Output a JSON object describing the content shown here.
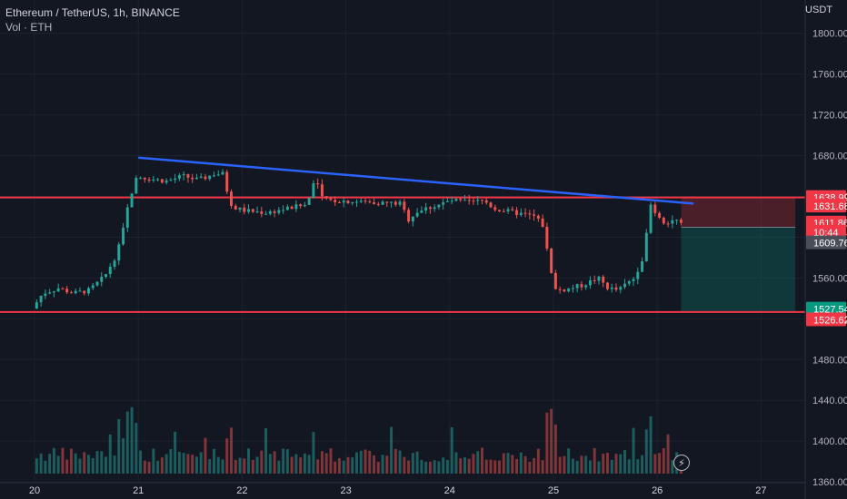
{
  "header": {
    "symbol": "Ethereum / TetherUS, 1h, BINANCE",
    "volume_label": "Vol · ETH"
  },
  "price_scale": {
    "currency": "USDT"
  },
  "quick_trade_icon": "lightning-icon",
  "chart_data": {
    "type": "candlestick",
    "x_ticks": [
      "20",
      "21",
      "22",
      "23",
      "24",
      "25",
      "26",
      "27"
    ],
    "y_ticks": [
      1360,
      1400,
      1440,
      1480,
      1520,
      1560,
      1600,
      1640,
      1680,
      1720,
      1760,
      1800
    ],
    "y_tick_labels": [
      "1360.00",
      "1400.00",
      "1440.00",
      "1480.00",
      "1520.00",
      "1560.00",
      "1600.00",
      "1640.00",
      "1680.00",
      "1720.00",
      "1760.00",
      "1800.00"
    ],
    "ylim": [
      1345,
      1830
    ],
    "colors": {
      "up": "#26a69a",
      "down": "#ef5350",
      "background": "#131722",
      "trendline": "#2962ff",
      "level": "#f23645"
    },
    "price_path": [
      [
        20.0,
        1530
      ],
      [
        20.1,
        1545
      ],
      [
        20.25,
        1550
      ],
      [
        20.4,
        1545
      ],
      [
        20.55,
        1548
      ],
      [
        20.7,
        1562
      ],
      [
        20.82,
        1585
      ],
      [
        20.88,
        1610
      ],
      [
        20.93,
        1635
      ],
      [
        21.0,
        1660
      ],
      [
        21.15,
        1657
      ],
      [
        21.3,
        1655
      ],
      [
        21.45,
        1660
      ],
      [
        21.6,
        1656
      ],
      [
        21.75,
        1662
      ],
      [
        21.85,
        1662
      ],
      [
        21.9,
        1630
      ],
      [
        22.05,
        1626
      ],
      [
        22.25,
        1624
      ],
      [
        22.45,
        1628
      ],
      [
        22.65,
        1632
      ],
      [
        22.72,
        1660
      ],
      [
        22.8,
        1636
      ],
      [
        22.95,
        1636
      ],
      [
        23.1,
        1635
      ],
      [
        23.3,
        1634
      ],
      [
        23.55,
        1633
      ],
      [
        23.62,
        1617
      ],
      [
        23.7,
        1625
      ],
      [
        23.85,
        1630
      ],
      [
        24.05,
        1636
      ],
      [
        24.2,
        1634
      ],
      [
        24.35,
        1636
      ],
      [
        24.45,
        1628
      ],
      [
        24.6,
        1625
      ],
      [
        24.85,
        1620
      ],
      [
        24.93,
        1610
      ],
      [
        24.98,
        1570
      ],
      [
        25.05,
        1548
      ],
      [
        25.15,
        1549
      ],
      [
        25.3,
        1553
      ],
      [
        25.45,
        1560
      ],
      [
        25.55,
        1550
      ],
      [
        25.65,
        1548
      ],
      [
        25.72,
        1554
      ],
      [
        25.8,
        1560
      ],
      [
        25.88,
        1580
      ],
      [
        25.93,
        1610
      ],
      [
        25.96,
        1633
      ],
      [
        26.0,
        1625
      ],
      [
        26.1,
        1614
      ],
      [
        26.2,
        1618
      ],
      [
        26.23,
        1612
      ]
    ],
    "volume_scale_max": 1.0,
    "trendline": {
      "from": {
        "x": 21.0,
        "y": 1678
      },
      "to": {
        "x": 26.35,
        "y": 1633
      }
    },
    "horizontal_levels": [
      1638.99,
      1526.62
    ],
    "position_tool": {
      "entry": 1609.76,
      "stop": 1638.99,
      "target": 1527.54,
      "x_start": 26.23,
      "x_end": 27.33
    },
    "price_tags": [
      {
        "label": "1638.99",
        "price": 1638.99,
        "bg": "#f23645"
      },
      {
        "label": "1631.68",
        "price": 1630.5,
        "bg": "#f23645"
      },
      {
        "label": "1611.86",
        "price": 1614.0,
        "bg": "#f23645"
      },
      {
        "label": "10:44",
        "price": 1605.0,
        "bg": "#f23645"
      },
      {
        "label": "1609.76",
        "price": 1594.5,
        "bg": "#4a4e58"
      },
      {
        "label": "1527.54",
        "price": 1529.5,
        "bg": "#089981"
      },
      {
        "label": "1526.62",
        "price": 1519.0,
        "bg": "#f23645"
      }
    ]
  }
}
